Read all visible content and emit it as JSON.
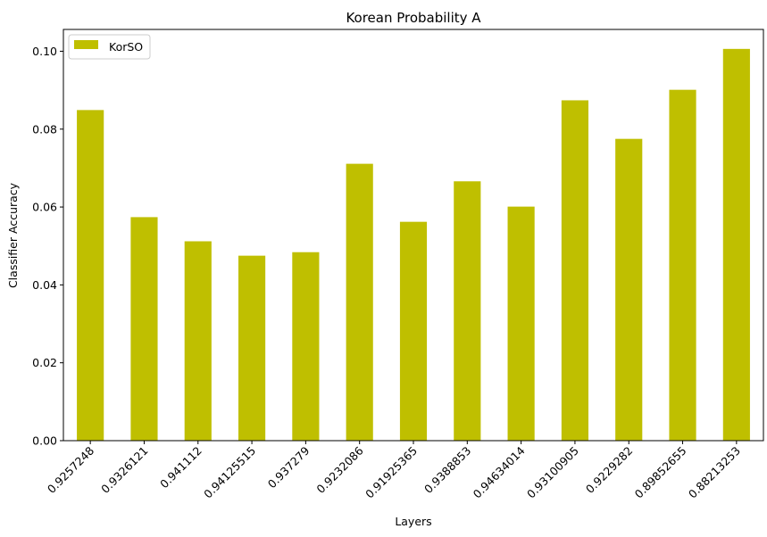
{
  "chart_data": {
    "type": "bar",
    "title": "Korean Probability A",
    "xlabel": "Layers",
    "ylabel": "Classifier Accuracy",
    "categories": [
      "0.9257248",
      "0.9326121",
      "0.941112",
      "0.94125515",
      "0.937279",
      "0.9232086",
      "0.91925365",
      "0.9388853",
      "0.94634014",
      "0.93100905",
      "0.9229282",
      "0.89852655",
      "0.88213253"
    ],
    "series": [
      {
        "name": "KorSO",
        "color": "#bfbf00",
        "values": [
          0.0849,
          0.0574,
          0.0512,
          0.0475,
          0.0484,
          0.0711,
          0.0562,
          0.0666,
          0.0601,
          0.0874,
          0.0775,
          0.0901,
          0.1006
        ]
      }
    ],
    "ylim": [
      0,
      0.1056
    ],
    "yticks": [
      "0.00",
      "0.02",
      "0.04",
      "0.06",
      "0.08",
      "0.10"
    ],
    "ytick_values": [
      0,
      0.02,
      0.04,
      0.06,
      0.08,
      0.1
    ],
    "legend_position": "top-left",
    "grid": false
  }
}
